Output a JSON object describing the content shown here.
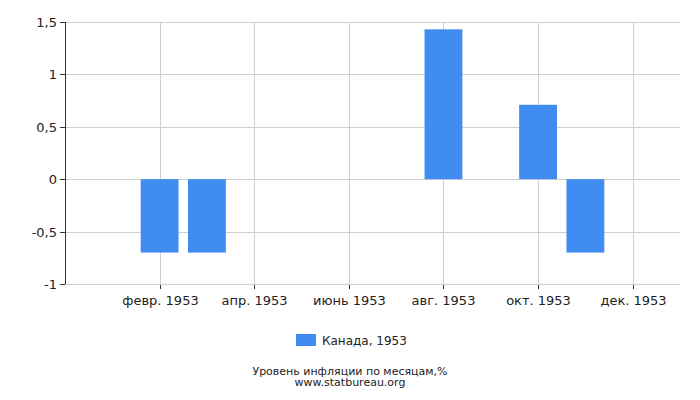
{
  "chart_data": {
    "type": "bar",
    "title": "Уровень инфляции по месяцам,%",
    "subtitle": "www.statbureau.org",
    "categories": [
      null,
      "февр. 1953",
      null,
      "апр. 1953",
      null,
      "июнь 1953",
      null,
      "авг. 1953",
      null,
      "окт. 1953",
      null,
      "дек. 1953"
    ],
    "series": [
      {
        "name": "Канада, 1953",
        "color": "#418cf0",
        "values": [
          0,
          -0.7,
          -0.7,
          0,
          0,
          0,
          0,
          1.43,
          0,
          0.71,
          -0.7,
          0
        ]
      }
    ],
    "ylim": [
      -1,
      1.5
    ],
    "yticks": [
      -1,
      {
        "value": -0.5,
        "label": "-0,5"
      },
      0,
      {
        "value": 0.5,
        "label": "0,5"
      },
      1,
      {
        "value": 1.5,
        "label": "1,5"
      }
    ],
    "grid": true,
    "legend": "bottom"
  }
}
